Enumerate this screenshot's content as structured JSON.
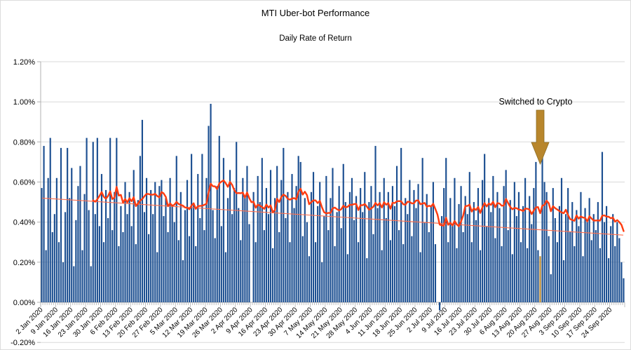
{
  "header": {
    "title": "MTI Uber-bot Performance",
    "subtitle": "Daily Rate of Return"
  },
  "annotation": {
    "label": "Switched to Crypto",
    "arrow_icon": "down-block-arrow"
  },
  "colors": {
    "bar": "#1c4f91",
    "highlight_bar": "#b8862c",
    "avg_line": "#ff3c10",
    "trend_line": "#ff6e4e",
    "gridline": "#d9d9d9",
    "axis_line": "#b0b0b0",
    "text": "#000000",
    "arrow": "#b8862c",
    "arrow_outline": "#8c6d25"
  },
  "chart_data": {
    "type": "bar",
    "title": "MTI Uber-bot Performance",
    "subtitle": "Daily Rate of Return",
    "xlabel": "",
    "ylabel": "",
    "ylim": [
      -0.2,
      1.2
    ],
    "grid": "horizontal",
    "legend": "none",
    "y_ticks": [
      "1.20%",
      "1.00%",
      "0.80%",
      "0.60%",
      "0.40%",
      "0.20%",
      "0.00%",
      "-0.20%"
    ],
    "y_tick_values": [
      1.2,
      1.0,
      0.8,
      0.6,
      0.4,
      0.2,
      0.0,
      -0.2
    ],
    "x_tick_interval_days": 7,
    "x_tick_labels": [
      "2 Jan 2020",
      "9 Jan 2020",
      "16 Jan 2020",
      "23 Jan 2020",
      "30 Jan 2020",
      "6 Feb 2020",
      "13 Feb 2020",
      "20 Feb 2020",
      "27 Feb 2020",
      "5 Mar 2020",
      "12 Mar 2020",
      "19 Mar 2020",
      "26 Mar 2020",
      "2 Apr 2020",
      "9 Apr 2020",
      "16 Apr 2020",
      "23 Apr 2020",
      "30 Apr 2020",
      "7 May 2020",
      "14 May 2020",
      "21 May 2020",
      "28 May 2020",
      "4 Jun 2020",
      "11 Jun 2020",
      "18 Jun 2020",
      "25 Jun 2020",
      "2 Jul 2020",
      "9 Jul 2020",
      "16 Jul 2020",
      "23 Jul 2020",
      "30 Jul 2020",
      "6 Aug 2020",
      "13 Aug 2020",
      "20 Aug 2020",
      "27 Aug 2020",
      "3 Sep 2020",
      "10 Sep 2020",
      "17 Sep 2020",
      "24 Sep 2020"
    ],
    "highlight": {
      "index": 233,
      "label": "Switched to Crypto"
    },
    "series": [
      {
        "name": "daily_rate_of_return_pct",
        "type": "bar",
        "values": [
          0.57,
          0.78,
          0.26,
          0.62,
          0.82,
          0.35,
          0.44,
          0.62,
          0.3,
          0.77,
          0.2,
          0.45,
          0.77,
          0.52,
          0.67,
          0.18,
          0.41,
          0.58,
          0.68,
          0.26,
          0.54,
          0.82,
          0.46,
          0.18,
          0.8,
          0.44,
          0.82,
          0.38,
          0.64,
          0.3,
          0.56,
          0.42,
          0.82,
          0.36,
          0.55,
          0.82,
          0.28,
          0.48,
          0.35,
          0.6,
          0.44,
          0.55,
          0.38,
          0.66,
          0.29,
          0.51,
          0.73,
          0.91,
          0.45,
          0.62,
          0.34,
          0.56,
          0.44,
          0.6,
          0.25,
          0.58,
          0.61,
          0.43,
          0.52,
          0.35,
          0.62,
          0.48,
          0.4,
          0.73,
          0.31,
          0.55,
          0.21,
          0.46,
          0.61,
          0.33,
          0.74,
          0.49,
          0.28,
          0.64,
          0.42,
          0.74,
          0.36,
          0.62,
          0.88,
          0.99,
          0.46,
          0.32,
          0.58,
          0.83,
          0.38,
          0.72,
          0.25,
          0.52,
          0.66,
          0.44,
          0.57,
          0.8,
          0.47,
          0.31,
          0.62,
          0.53,
          0.68,
          0.39,
          0.0,
          0.55,
          0.3,
          0.63,
          0.5,
          0.72,
          0.36,
          0.57,
          0.44,
          0.66,
          0.27,
          0.52,
          0.68,
          0.35,
          0.61,
          0.77,
          0.42,
          0.55,
          0.3,
          0.64,
          0.47,
          0.58,
          0.73,
          0.7,
          0.33,
          0.52,
          0.4,
          0.23,
          0.55,
          0.65,
          0.3,
          0.48,
          0.6,
          0.2,
          0.43,
          0.63,
          0.36,
          0.52,
          0.67,
          0.28,
          0.45,
          0.58,
          0.37,
          0.69,
          0.5,
          0.24,
          0.55,
          0.62,
          0.41,
          0.53,
          0.3,
          0.57,
          0.45,
          0.65,
          0.22,
          0.5,
          0.58,
          0.34,
          0.78,
          0.47,
          0.55,
          0.26,
          0.62,
          0.42,
          0.55,
          0.31,
          0.58,
          0.48,
          0.68,
          0.36,
          0.77,
          0.29,
          0.52,
          0.44,
          0.61,
          0.33,
          0.56,
          0.47,
          0.59,
          0.25,
          0.72,
          0.4,
          0.54,
          0.35,
          0.48,
          0.6,
          0.29,
          0.0,
          -0.04,
          0.43,
          0.57,
          0.72,
          0.3,
          0.52,
          0.38,
          0.62,
          0.27,
          0.49,
          0.58,
          0.35,
          0.53,
          0.44,
          0.65,
          0.3,
          0.5,
          0.41,
          0.57,
          0.26,
          0.61,
          0.74,
          0.38,
          0.52,
          0.45,
          0.63,
          0.32,
          0.55,
          0.47,
          0.28,
          0.58,
          0.66,
          0.36,
          0.51,
          0.24,
          0.6,
          0.43,
          0.55,
          0.3,
          0.48,
          0.62,
          0.27,
          0.53,
          0.39,
          0.57,
          0.7,
          0.26,
          0.23,
          0.88,
          0.6,
          0.55,
          0.33,
          0.14,
          0.57,
          0.42,
          0.3,
          0.48,
          0.62,
          0.21,
          0.44,
          0.57,
          0.35,
          0.5,
          0.28,
          0.46,
          0.38,
          0.55,
          0.23,
          0.47,
          0.4,
          0.52,
          0.31,
          0.44,
          0.36,
          0.5,
          0.27,
          0.75,
          0.4,
          0.48,
          0.22,
          0.38,
          0.44,
          0.28,
          0.4,
          0.32,
          0.2,
          0.12
        ]
      },
      {
        "name": "moving_average",
        "type": "line",
        "window": 12,
        "start_index": 24
      },
      {
        "name": "trend",
        "type": "linear",
        "start": 0.52,
        "end": 0.335
      }
    ]
  }
}
